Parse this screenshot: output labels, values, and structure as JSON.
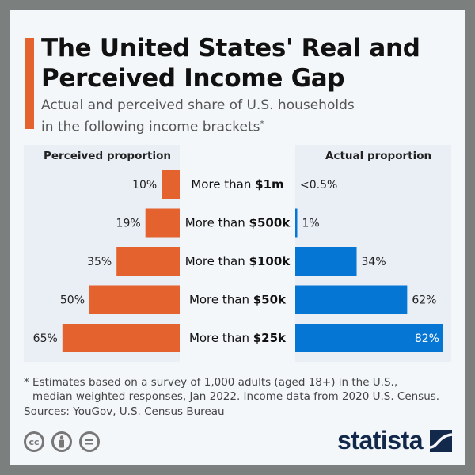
{
  "header": {
    "title_line1": "The United States' Real and",
    "title_line2": "Perceived Income Gap",
    "subtitle_line1": "Actual and perceived share of U.S. households",
    "subtitle_line2": "in the following income brackets",
    "subtitle_mark": "*"
  },
  "chart_data": {
    "type": "bar",
    "title": "The United States' Real and Perceived Income Gap",
    "subtitle": "Actual and perceived share of U.S. households in the following income brackets*",
    "layout": "butterfly",
    "categories": [
      "More than $1m",
      "More than $500k",
      "More than $100k",
      "More than $50k",
      "More than $25k"
    ],
    "category_prefix": "More than ",
    "category_amounts": [
      "$1m",
      "$500k",
      "$100k",
      "$50k",
      "$25k"
    ],
    "series": [
      {
        "name": "Perceived proportion",
        "side": "left",
        "color": "#e4622d",
        "values": [
          10,
          19,
          35,
          50,
          65
        ],
        "labels": [
          "10%",
          "19%",
          "35%",
          "50%",
          "65%"
        ]
      },
      {
        "name": "Actual proportion",
        "side": "right",
        "color": "#0676d5",
        "values": [
          0.3,
          1,
          34,
          62,
          82
        ],
        "labels": [
          "<0.5%",
          "1%",
          "34%",
          "62%",
          "82%"
        ]
      }
    ],
    "unit": "%",
    "xlim": [
      0,
      85
    ]
  },
  "footer": {
    "footnote_line1": "* Estimates based on a survey of 1,000 adults (aged 18+) in the U.S.,",
    "footnote_line2": "median weighted responses, Jan 2022. Income data from 2020 U.S. Census.",
    "sources": "Sources: YouGov, U.S. Census Bureau",
    "license_icons": [
      "cc-icon",
      "by-icon",
      "nd-icon"
    ],
    "logo_text": "statista"
  }
}
